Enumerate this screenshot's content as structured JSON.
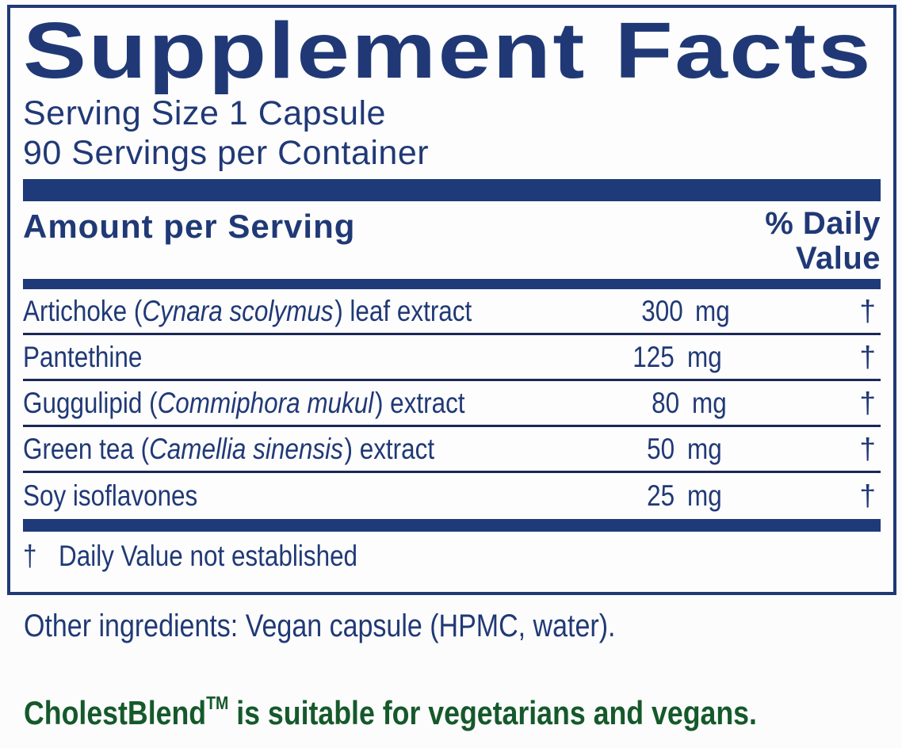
{
  "colors": {
    "navy": "#203976",
    "bar_navy": "#1e3a78",
    "green": "#15592b"
  },
  "panel": {
    "title": "Supplement Facts",
    "serving_size": "Serving Size 1 Capsule",
    "servings_per_container": "90 Servings per Container",
    "columns": {
      "amount_header": "Amount per Serving",
      "dv_header_line1": "% Daily",
      "dv_header_line2": "Value"
    },
    "rows": [
      {
        "name_prefix": "Artichoke (",
        "name_latin": "Cynara scolymus",
        "name_suffix": ") leaf extract",
        "amount": "300",
        "unit": "mg",
        "daily_value": "†"
      },
      {
        "name_prefix": "Pantethine",
        "name_latin": "",
        "name_suffix": "",
        "amount": "125",
        "unit": "mg",
        "daily_value": "†"
      },
      {
        "name_prefix": "Guggulipid (",
        "name_latin": "Commiphora mukul",
        "name_suffix": ") extract",
        "amount": "80",
        "unit": "mg",
        "daily_value": "†"
      },
      {
        "name_prefix": "Green tea (",
        "name_latin": "Camellia sinensis",
        "name_suffix": ") extract",
        "amount": "50",
        "unit": "mg",
        "daily_value": "†"
      },
      {
        "name_prefix": "Soy isoflavones",
        "name_latin": "",
        "name_suffix": "",
        "amount": "25",
        "unit": "mg",
        "daily_value": "†"
      }
    ],
    "footnote_symbol": "†",
    "footnote_text": "Daily Value not established"
  },
  "other_ingredients": "Other ingredients: Vegan capsule (HPMC, water).",
  "claim": {
    "brand": "CholestBlend",
    "trademark": "TM",
    "text": " is suitable for vegetarians and vegans."
  }
}
